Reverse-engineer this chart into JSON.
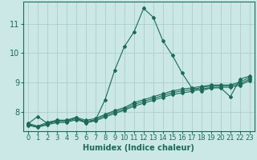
{
  "xlabel": "Humidex (Indice chaleur)",
  "background_color": "#cce8e6",
  "grid_color": "#aacfcc",
  "line_color": "#1a6b5a",
  "xlim": [
    -0.5,
    23.5
  ],
  "ylim": [
    7.35,
    11.75
  ],
  "xticks": [
    0,
    1,
    2,
    3,
    4,
    5,
    6,
    7,
    8,
    9,
    10,
    11,
    12,
    13,
    14,
    15,
    16,
    17,
    18,
    19,
    20,
    21,
    22,
    23
  ],
  "yticks": [
    8,
    9,
    10,
    11
  ],
  "lines": [
    {
      "x": [
        0,
        1,
        2,
        3,
        4,
        5,
        6,
        7,
        8,
        9,
        10,
        11,
        12,
        13,
        14,
        15,
        16,
        17,
        18,
        19,
        20,
        21,
        22,
        23
      ],
      "y": [
        7.6,
        7.85,
        7.62,
        7.72,
        7.72,
        7.82,
        7.62,
        7.72,
        8.42,
        9.42,
        10.22,
        10.72,
        11.52,
        11.22,
        10.42,
        9.92,
        9.32,
        8.82,
        8.72,
        8.82,
        8.82,
        8.52,
        9.12,
        9.22
      ]
    },
    {
      "x": [
        0,
        1,
        2,
        3,
        4,
        5,
        6,
        7,
        8,
        9,
        10,
        11,
        12,
        13,
        14,
        15,
        16,
        17,
        18,
        19,
        20,
        21,
        22,
        23
      ],
      "y": [
        7.62,
        7.52,
        7.65,
        7.72,
        7.72,
        7.82,
        7.72,
        7.78,
        7.92,
        8.05,
        8.15,
        8.32,
        8.42,
        8.52,
        8.62,
        8.72,
        8.78,
        8.82,
        8.87,
        8.92,
        8.92,
        8.92,
        9.02,
        9.18
      ]
    },
    {
      "x": [
        0,
        1,
        2,
        3,
        4,
        5,
        6,
        7,
        8,
        9,
        10,
        11,
        12,
        13,
        14,
        15,
        16,
        17,
        18,
        19,
        20,
        21,
        22,
        23
      ],
      "y": [
        7.58,
        7.5,
        7.6,
        7.68,
        7.68,
        7.78,
        7.68,
        7.74,
        7.88,
        8.0,
        8.1,
        8.26,
        8.36,
        8.46,
        8.56,
        8.66,
        8.72,
        8.76,
        8.83,
        8.88,
        8.89,
        8.89,
        8.96,
        9.12
      ]
    },
    {
      "x": [
        0,
        1,
        2,
        3,
        4,
        5,
        6,
        7,
        8,
        9,
        10,
        11,
        12,
        13,
        14,
        15,
        16,
        17,
        18,
        19,
        20,
        21,
        22,
        23
      ],
      "y": [
        7.55,
        7.48,
        7.57,
        7.64,
        7.65,
        7.74,
        7.65,
        7.7,
        7.83,
        7.95,
        8.06,
        8.2,
        8.3,
        8.4,
        8.5,
        8.6,
        8.65,
        8.7,
        8.78,
        8.83,
        8.84,
        8.84,
        8.91,
        9.07
      ]
    }
  ],
  "marker": "D",
  "markersize": 2.0,
  "linewidth": 0.8,
  "xlabel_fontsize": 7,
  "tick_fontsize": 6
}
